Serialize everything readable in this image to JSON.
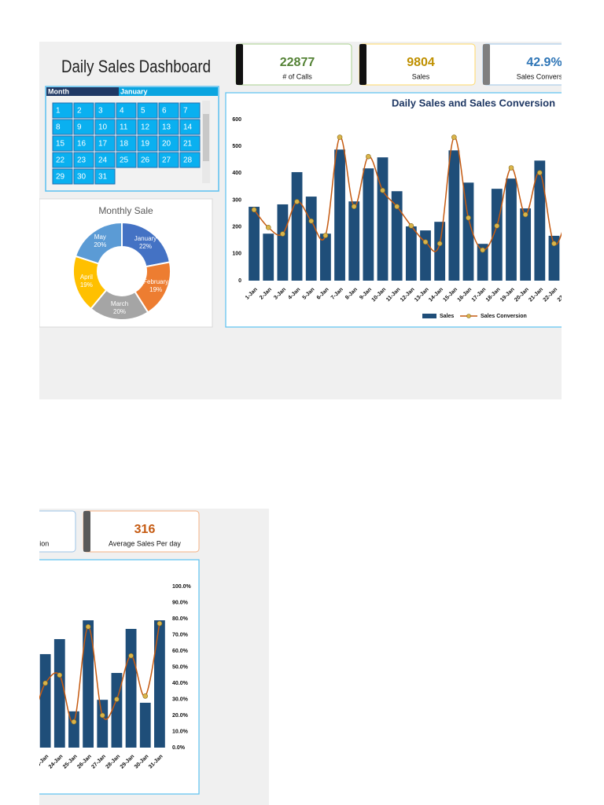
{
  "header": {
    "title": "Daily Sales Dashboard"
  },
  "kpis": [
    {
      "value": 22877,
      "label": "# of Calls"
    },
    {
      "value": 9804,
      "label": "Sales"
    },
    {
      "value": "42.9%",
      "label": "Sales Conversion"
    },
    {
      "value": 316,
      "label": "Average Sales Per day"
    }
  ],
  "slicer": {
    "field": "Month",
    "selected": "January",
    "days": [
      1,
      2,
      3,
      4,
      5,
      6,
      7,
      8,
      9,
      10,
      11,
      12,
      13,
      14,
      15,
      16,
      17,
      18,
      19,
      20,
      21,
      22,
      23,
      24,
      25,
      26,
      27,
      28,
      29,
      30,
      31
    ]
  },
  "chart_data": [
    {
      "type": "pie",
      "title": "Monthly Sale",
      "donut": true,
      "categories": [
        "January",
        "February",
        "March",
        "April",
        "May"
      ],
      "values": [
        22,
        19,
        20,
        19,
        20
      ],
      "value_labels": [
        "22%",
        "19%",
        "20%",
        "19%",
        "20%"
      ],
      "colors": [
        "#4472c4",
        "#ed7d31",
        "#a5a5a5",
        "#ffc000",
        "#5b9bd5"
      ]
    },
    {
      "type": "bar",
      "title": "Daily Sales and Sales Conversion",
      "categories": [
        "1-Jan",
        "2-Jan",
        "3-Jan",
        "4-Jan",
        "5-Jan",
        "6-Jan",
        "7-Jan",
        "8-Jan",
        "9-Jan",
        "10-Jan",
        "11-Jan",
        "12-Jan",
        "13-Jan",
        "14-Jan",
        "15-Jan",
        "16-Jan",
        "17-Jan",
        "18-Jan",
        "19-Jan",
        "20-Jan",
        "21-Jan",
        "22-Jan",
        "23-Jan",
        "24-Jan",
        "25-Jan",
        "26-Jan",
        "27-Jan",
        "28-Jan",
        "29-Jan",
        "30-Jan",
        "31-Jan"
      ],
      "series": [
        {
          "name": "Sales",
          "color": "#1f4e79",
          "values": [
            275,
            175,
            284,
            404,
            313,
            175,
            488,
            295,
            418,
            459,
            333,
            202,
            187,
            219,
            485,
            365,
            137,
            342,
            380,
            269,
            447,
            167,
            348,
            404,
            135,
            474,
            178,
            278,
            442,
            167,
            474
          ]
        },
        {
          "name": "Sales Conversion",
          "type": "line",
          "axis": "y2",
          "color": "#c55a11",
          "values": [
            44,
            33,
            29,
            49,
            37,
            28,
            89,
            46,
            77,
            56,
            46,
            34,
            24,
            23,
            89,
            39,
            19,
            34,
            70,
            41,
            67,
            23,
            40,
            45,
            16,
            75,
            20,
            30,
            57,
            32,
            77
          ]
        }
      ],
      "ylim": [
        0,
        600
      ],
      "yticks": [
        0,
        100,
        200,
        300,
        400,
        500,
        600
      ],
      "y2lim": [
        0,
        100
      ],
      "y2ticks": [
        {
          "value": 0,
          "label": "0.0%"
        },
        {
          "value": 10,
          "label": "10.0%"
        },
        {
          "value": 20,
          "label": "20.0%"
        },
        {
          "value": 30,
          "label": "30.0%"
        },
        {
          "value": 40,
          "label": "40.0%"
        },
        {
          "value": 50,
          "label": "50.0%"
        },
        {
          "value": 60,
          "label": "60.0%"
        },
        {
          "value": 70,
          "label": "70.0%"
        },
        {
          "value": 80,
          "label": "80.0%"
        },
        {
          "value": 90,
          "label": "90.0%"
        },
        {
          "value": 100,
          "label": "100.0%"
        }
      ],
      "legend": "bottom"
    }
  ]
}
